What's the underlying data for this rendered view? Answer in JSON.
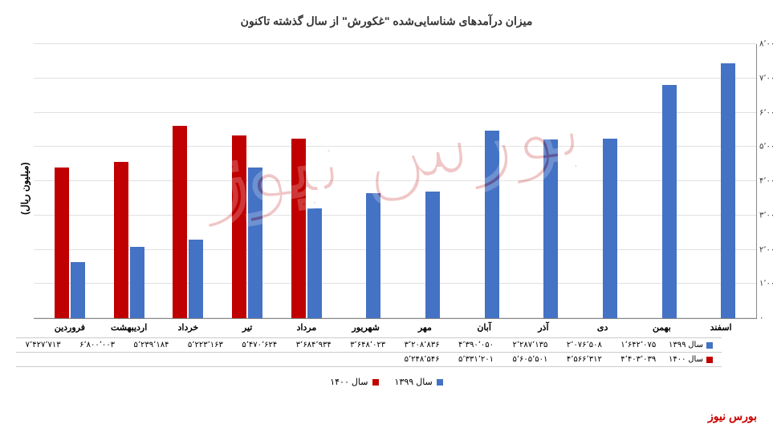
{
  "title": "میزان درآمدهای شناسایی‌شده \"غکورش\" از سال گذشته تاکنون",
  "ylabel": "(میلیون ریال)",
  "footer": "بورس نیوز",
  "ymax": 8000000,
  "ytick_step": 1000000,
  "yticks": [
    "۰",
    "۱٬۰۰۰٬۰۰۰",
    "۲٬۰۰۰٬۰۰۰",
    "۳٬۰۰۰٬۰۰۰",
    "۴٬۰۰۰٬۰۰۰",
    "۵٬۰۰۰٬۰۰۰",
    "۶٬۰۰۰٬۰۰۰",
    "۷٬۰۰۰٬۰۰۰",
    "۸٬۰۰۰٬۰۰۰"
  ],
  "months": [
    "فروردین",
    "اردیبهشت",
    "خرداد",
    "تیر",
    "مرداد",
    "شهریور",
    "مهر",
    "آبان",
    "آذر",
    "دی",
    "بهمن",
    "اسفند"
  ],
  "series": [
    {
      "name": "سال ۱۳۹۹",
      "color": "#4472c4",
      "values": [
        1642075,
        2076508,
        2287135,
        4390050,
        3208836,
        3648023,
        3684934,
        5470624,
        5223163,
        5239184,
        6800003,
        7427713
      ],
      "labels": [
        "۱٬۶۴۲٬۰۷۵",
        "۲٬۰۷۶٬۵۰۸",
        "۲٬۲۸۷٬۱۳۵",
        "۴٬۳۹۰٬۰۵۰",
        "۳٬۲۰۸٬۸۳۶",
        "۳٬۶۴۸٬۰۲۳",
        "۳٬۶۸۴٬۹۳۴",
        "۵٬۴۷۰٬۶۲۴",
        "۵٬۲۲۳٬۱۶۳",
        "۵٬۲۳۹٬۱۸۴",
        "۶٬۸۰۰٬۰۰۳",
        "۷٬۴۲۷٬۷۱۳"
      ]
    },
    {
      "name": "سال ۱۴۰۰",
      "color": "#c00000",
      "values": [
        4403039,
        4566312,
        5605501,
        5331201,
        5248546,
        null,
        null,
        null,
        null,
        null,
        null,
        null
      ],
      "labels": [
        "۴٬۴۰۳٬۰۳۹",
        "۴٬۵۶۶٬۳۱۲",
        "۵٬۶۰۵٬۵۰۱",
        "۵٬۳۳۱٬۲۰۱",
        "۵٬۲۴۸٬۵۴۶",
        "",
        "",
        "",
        "",
        "",
        "",
        ""
      ]
    }
  ],
  "legend": [
    {
      "label": "سال ۱۳۹۹",
      "color": "#4472c4"
    },
    {
      "label": "سال ۱۴۰۰",
      "color": "#c00000"
    }
  ],
  "grid_color": "#e0e0e0",
  "bg": "#ffffff"
}
